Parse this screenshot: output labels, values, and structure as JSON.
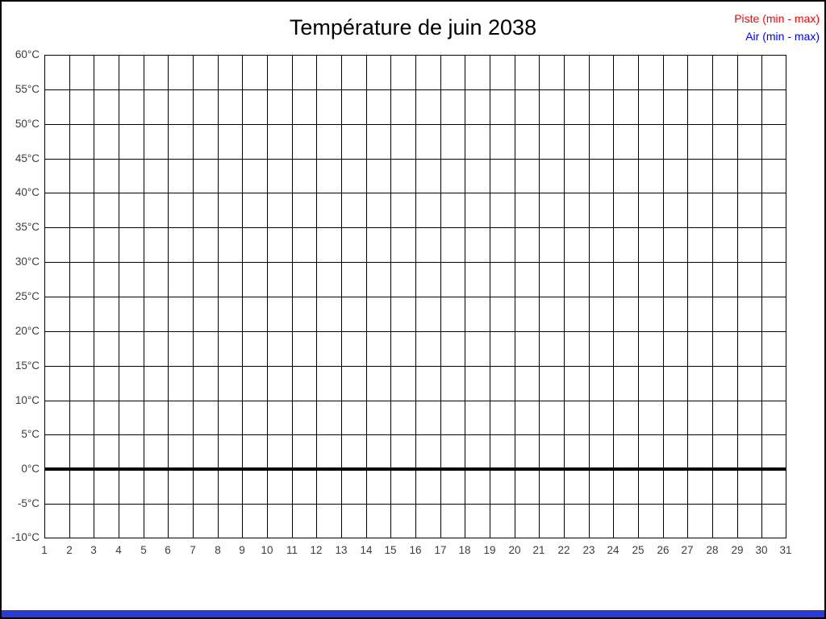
{
  "title": "Température de juin 2038",
  "legend": {
    "entries": [
      {
        "label": "Piste (min - max)",
        "color": "#ff0000"
      },
      {
        "label": "Air (min - max)",
        "color": "#0000ff"
      }
    ]
  },
  "chart_data": {
    "type": "line",
    "title": "Température de juin 2038",
    "xlabel": "",
    "ylabel": "",
    "ylim": [
      -10,
      60
    ],
    "y_tick_step": 5,
    "y_ticks": [
      {
        "value": 60,
        "label": "60°C"
      },
      {
        "value": 55,
        "label": "55°C"
      },
      {
        "value": 50,
        "label": "50°C"
      },
      {
        "value": 45,
        "label": "45°C"
      },
      {
        "value": 40,
        "label": "40°C"
      },
      {
        "value": 35,
        "label": "35°C"
      },
      {
        "value": 30,
        "label": "30°C"
      },
      {
        "value": 25,
        "label": "25°C"
      },
      {
        "value": 20,
        "label": "20°C"
      },
      {
        "value": 15,
        "label": "15°C"
      },
      {
        "value": 10,
        "label": "10°C"
      },
      {
        "value": 5,
        "label": "5°C"
      },
      {
        "value": 0,
        "label": "0°C"
      },
      {
        "value": -5,
        "label": "-5°C"
      },
      {
        "value": -10,
        "label": "-10°C"
      }
    ],
    "x_ticks": [
      "1",
      "2",
      "3",
      "4",
      "5",
      "6",
      "7",
      "8",
      "9",
      "10",
      "11",
      "12",
      "13",
      "14",
      "15",
      "16",
      "17",
      "18",
      "19",
      "20",
      "21",
      "22",
      "23",
      "24",
      "25",
      "26",
      "27",
      "28",
      "29",
      "30",
      "31"
    ],
    "grid": true,
    "zero_line_value": 0,
    "legend_position": "top-right",
    "series": [
      {
        "name": "Piste (min - max)",
        "color": "#ff0000",
        "values": []
      },
      {
        "name": "Air (min - max)",
        "color": "#0000ff",
        "values": []
      }
    ]
  },
  "bottom_bar": {
    "color": "#2b3cd4"
  }
}
